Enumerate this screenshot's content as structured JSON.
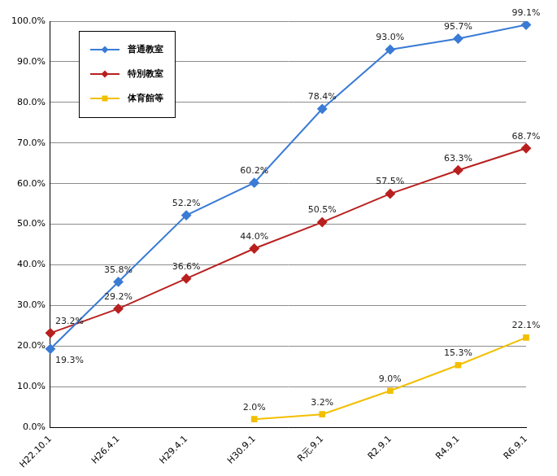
{
  "chart_data": {
    "type": "line",
    "categories": [
      "H22.10.1",
      "H26.4.1",
      "H29.4.1",
      "H30.9.1",
      "R元.9.1",
      "R2.9.1",
      "R4.9.1",
      "R6.9.1"
    ],
    "series": [
      {
        "name": "普通教室",
        "color": "#3a7bd5",
        "marker": "diamond",
        "values": [
          19.3,
          35.8,
          52.2,
          60.2,
          78.4,
          93.0,
          95.7,
          99.1
        ],
        "value_labels": [
          "19.3%",
          "35.8%",
          "52.2%",
          "60.2%",
          "78.4%",
          "93.0%",
          "95.7%",
          "99.1%"
        ]
      },
      {
        "name": "特別教室",
        "color": "#b8201f",
        "marker": "diamond",
        "values": [
          23.2,
          29.2,
          36.6,
          44.0,
          50.5,
          57.5,
          63.3,
          68.7
        ],
        "value_labels": [
          "23.2%",
          "29.2%",
          "36.6%",
          "44.0%",
          "50.5%",
          "57.5%",
          "63.3%",
          "68.7%"
        ]
      },
      {
        "name": "体育館等",
        "color": "#f2bf00",
        "marker": "square",
        "values": [
          null,
          null,
          null,
          2.0,
          3.2,
          9.0,
          15.3,
          22.1
        ],
        "value_labels": [
          null,
          null,
          null,
          "2.0%",
          "3.2%",
          "9.0%",
          "15.3%",
          "22.1%"
        ]
      }
    ],
    "ylim": [
      0,
      100
    ],
    "yticks": [
      {
        "value": 0,
        "label": "0.0%"
      },
      {
        "value": 10,
        "label": "10.0%"
      },
      {
        "value": 20,
        "label": "20.0%"
      },
      {
        "value": 30,
        "label": "30.0%"
      },
      {
        "value": 40,
        "label": "40.0%"
      },
      {
        "value": 50,
        "label": "50.0%"
      },
      {
        "value": 60,
        "label": "60.0%"
      },
      {
        "value": 70,
        "label": "70.0%"
      },
      {
        "value": 80,
        "label": "80.0%"
      },
      {
        "value": 90,
        "label": "90.0%"
      },
      {
        "value": 100,
        "label": "100.0%"
      }
    ],
    "grid": true,
    "legend": "upper left",
    "data_labels": true
  }
}
